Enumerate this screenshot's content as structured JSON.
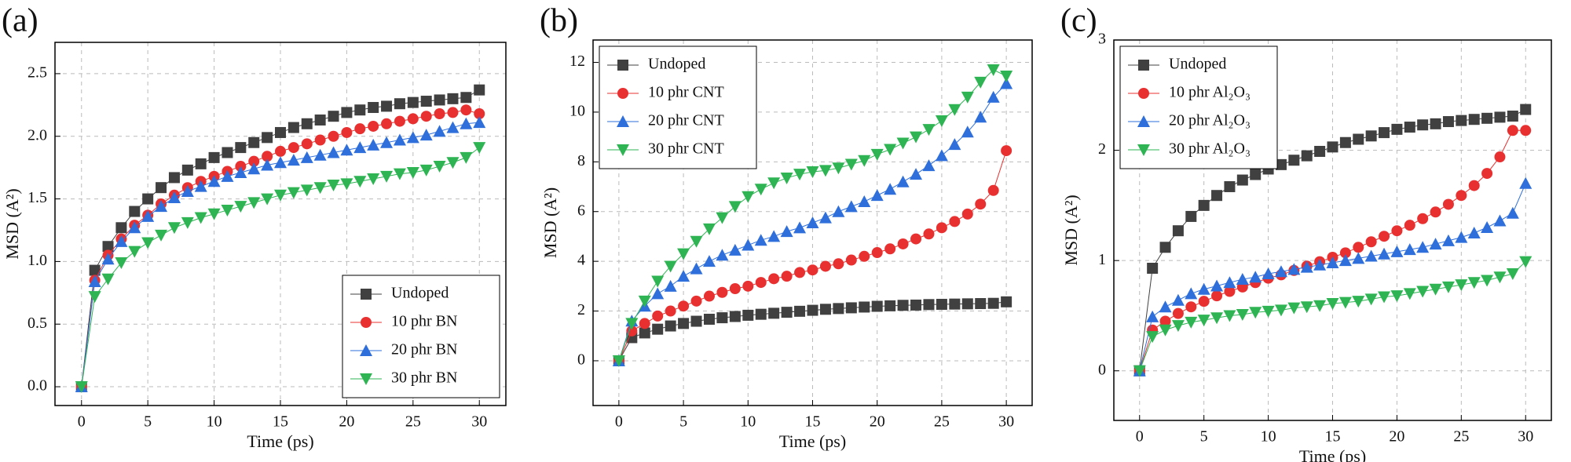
{
  "chart_data": [
    {
      "type": "line",
      "label": "(a)",
      "xlabel": "Time (ps)",
      "ylabel": "MSD (A²)",
      "x": [
        0,
        1,
        2,
        3,
        4,
        5,
        6,
        7,
        8,
        9,
        10,
        11,
        12,
        13,
        14,
        15,
        16,
        17,
        18,
        19,
        20,
        21,
        22,
        23,
        24,
        25,
        26,
        27,
        28,
        29,
        30
      ],
      "xlim": [
        -2,
        32
      ],
      "xticks": [
        0,
        5,
        10,
        15,
        20,
        25,
        30
      ],
      "ylim": [
        -0.15,
        2.75
      ],
      "yticks": [
        {
          "value": 0,
          "label": "0.0"
        },
        0.5,
        {
          "value": 1,
          "label": "1.0"
        },
        1.5,
        {
          "value": 2,
          "label": "2.0"
        },
        2.5
      ],
      "grid": true,
      "legend": "lower right",
      "series": [
        {
          "name": "Undoped",
          "color": "#404040",
          "marker": "square",
          "values": [
            0,
            0.93,
            1.12,
            1.27,
            1.4,
            1.5,
            1.59,
            1.67,
            1.73,
            1.78,
            1.83,
            1.87,
            1.91,
            1.95,
            1.99,
            2.03,
            2.07,
            2.1,
            2.13,
            2.16,
            2.19,
            2.21,
            2.23,
            2.24,
            2.26,
            2.27,
            2.28,
            2.29,
            2.3,
            2.31,
            2.37
          ]
        },
        {
          "name": "10 phr BN",
          "color": "#e83030",
          "marker": "circle",
          "values": [
            0,
            0.85,
            1.05,
            1.18,
            1.29,
            1.37,
            1.46,
            1.53,
            1.59,
            1.64,
            1.68,
            1.72,
            1.76,
            1.8,
            1.84,
            1.88,
            1.91,
            1.94,
            1.97,
            2.0,
            2.03,
            2.06,
            2.08,
            2.1,
            2.12,
            2.14,
            2.16,
            2.18,
            2.19,
            2.21,
            2.18
          ]
        },
        {
          "name": "20 phr BN",
          "color": "#2e6fdb",
          "marker": "triangle-up",
          "values": [
            0,
            0.84,
            1.02,
            1.16,
            1.27,
            1.36,
            1.44,
            1.51,
            1.56,
            1.6,
            1.64,
            1.68,
            1.71,
            1.74,
            1.77,
            1.79,
            1.81,
            1.83,
            1.85,
            1.87,
            1.89,
            1.91,
            1.93,
            1.95,
            1.97,
            1.99,
            2.01,
            2.04,
            2.07,
            2.1,
            2.11
          ]
        },
        {
          "name": "30 phr BN",
          "color": "#2fb454",
          "marker": "triangle-down",
          "values": [
            0,
            0.72,
            0.86,
            0.99,
            1.08,
            1.15,
            1.21,
            1.27,
            1.31,
            1.35,
            1.38,
            1.41,
            1.44,
            1.47,
            1.5,
            1.53,
            1.55,
            1.57,
            1.59,
            1.61,
            1.62,
            1.64,
            1.66,
            1.68,
            1.7,
            1.71,
            1.73,
            1.76,
            1.79,
            1.83,
            1.91
          ]
        }
      ]
    },
    {
      "type": "line",
      "label": "(b)",
      "xlabel": "Time (ps)",
      "ylabel": "MSD (A²)",
      "x": [
        0,
        1,
        2,
        3,
        4,
        5,
        6,
        7,
        8,
        9,
        10,
        11,
        12,
        13,
        14,
        15,
        16,
        17,
        18,
        19,
        20,
        21,
        22,
        23,
        24,
        25,
        26,
        27,
        28,
        29,
        30
      ],
      "xlim": [
        -2,
        32
      ],
      "xticks": [
        0,
        5,
        10,
        15,
        20,
        25,
        30
      ],
      "ylim": [
        -1.8,
        12.9
      ],
      "yticks": [
        0,
        2,
        4,
        6,
        8,
        10,
        12
      ],
      "grid": true,
      "legend": "upper left",
      "series": [
        {
          "name": "Undoped",
          "color": "#404040",
          "marker": "square",
          "values": [
            0,
            0.93,
            1.12,
            1.27,
            1.4,
            1.5,
            1.59,
            1.67,
            1.73,
            1.78,
            1.83,
            1.87,
            1.91,
            1.95,
            1.99,
            2.03,
            2.07,
            2.1,
            2.13,
            2.16,
            2.19,
            2.21,
            2.23,
            2.24,
            2.26,
            2.27,
            2.28,
            2.29,
            2.3,
            2.31,
            2.37
          ]
        },
        {
          "name": "10 phr CNT",
          "color": "#e83030",
          "marker": "circle",
          "values": [
            0,
            1.2,
            1.5,
            1.8,
            2.0,
            2.2,
            2.4,
            2.6,
            2.75,
            2.9,
            3.0,
            3.15,
            3.3,
            3.4,
            3.55,
            3.65,
            3.8,
            3.9,
            4.05,
            4.2,
            4.35,
            4.5,
            4.7,
            4.9,
            5.1,
            5.35,
            5.6,
            5.9,
            6.3,
            6.85,
            8.45
          ]
        },
        {
          "name": "20 phr CNT",
          "color": "#2e6fdb",
          "marker": "triangle-up",
          "values": [
            0,
            1.6,
            2.2,
            2.7,
            3.0,
            3.4,
            3.7,
            4.0,
            4.25,
            4.45,
            4.65,
            4.85,
            5.0,
            5.2,
            5.35,
            5.55,
            5.75,
            6.0,
            6.2,
            6.4,
            6.65,
            6.9,
            7.2,
            7.5,
            7.85,
            8.25,
            8.7,
            9.2,
            9.8,
            10.6,
            11.15
          ]
        },
        {
          "name": "30 phr CNT",
          "color": "#2fb454",
          "marker": "triangle-down",
          "values": [
            0,
            1.5,
            2.4,
            3.2,
            3.8,
            4.3,
            4.8,
            5.3,
            5.75,
            6.2,
            6.6,
            6.9,
            7.15,
            7.35,
            7.5,
            7.6,
            7.65,
            7.75,
            7.9,
            8.05,
            8.3,
            8.5,
            8.75,
            9.0,
            9.3,
            9.65,
            10.1,
            10.6,
            11.2,
            11.7,
            11.45
          ]
        }
      ]
    },
    {
      "type": "line",
      "label": "(c)",
      "xlabel": "Time (ps)",
      "ylabel": "MSD (A²)",
      "x": [
        0,
        1,
        2,
        3,
        4,
        5,
        6,
        7,
        8,
        9,
        10,
        11,
        12,
        13,
        14,
        15,
        16,
        17,
        18,
        19,
        20,
        21,
        22,
        23,
        24,
        25,
        26,
        27,
        28,
        29,
        30
      ],
      "xlim": [
        -2,
        32
      ],
      "xticks": [
        0,
        5,
        10,
        15,
        20,
        25,
        30
      ],
      "ylim": [
        -0.45,
        3
      ],
      "yticks": [
        0,
        1,
        2,
        3
      ],
      "grid": true,
      "legend": "upper left",
      "series": [
        {
          "name": "Undoped",
          "color": "#404040",
          "marker": "square",
          "values": [
            0,
            0.93,
            1.12,
            1.27,
            1.4,
            1.5,
            1.59,
            1.67,
            1.73,
            1.78,
            1.83,
            1.87,
            1.91,
            1.95,
            1.99,
            2.03,
            2.07,
            2.1,
            2.13,
            2.16,
            2.19,
            2.21,
            2.23,
            2.24,
            2.26,
            2.27,
            2.28,
            2.29,
            2.3,
            2.31,
            2.37
          ]
        },
        {
          "name": "10 phr Al₂O₃",
          "color": "#e83030",
          "marker": "circle",
          "values": [
            0,
            0.37,
            0.45,
            0.52,
            0.58,
            0.63,
            0.68,
            0.72,
            0.76,
            0.8,
            0.84,
            0.87,
            0.91,
            0.95,
            0.99,
            1.03,
            1.07,
            1.12,
            1.17,
            1.22,
            1.27,
            1.32,
            1.38,
            1.44,
            1.51,
            1.59,
            1.68,
            1.79,
            1.94,
            2.18,
            2.18
          ]
        },
        {
          "name": "20 phr Al₂O₃",
          "color": "#2e6fdb",
          "marker": "triangle-up",
          "values": [
            0,
            0.49,
            0.58,
            0.64,
            0.7,
            0.74,
            0.77,
            0.8,
            0.83,
            0.85,
            0.88,
            0.9,
            0.92,
            0.94,
            0.96,
            0.98,
            1.0,
            1.02,
            1.04,
            1.06,
            1.08,
            1.1,
            1.12,
            1.15,
            1.18,
            1.21,
            1.25,
            1.3,
            1.36,
            1.43,
            1.7
          ]
        },
        {
          "name": "30 phr Al₂O₃",
          "color": "#2fb454",
          "marker": "triangle-down",
          "values": [
            0,
            0.31,
            0.37,
            0.41,
            0.44,
            0.46,
            0.48,
            0.5,
            0.51,
            0.53,
            0.54,
            0.55,
            0.57,
            0.58,
            0.59,
            0.61,
            0.62,
            0.63,
            0.65,
            0.67,
            0.68,
            0.7,
            0.72,
            0.74,
            0.76,
            0.78,
            0.8,
            0.82,
            0.85,
            0.88,
            0.99
          ]
        }
      ]
    }
  ]
}
